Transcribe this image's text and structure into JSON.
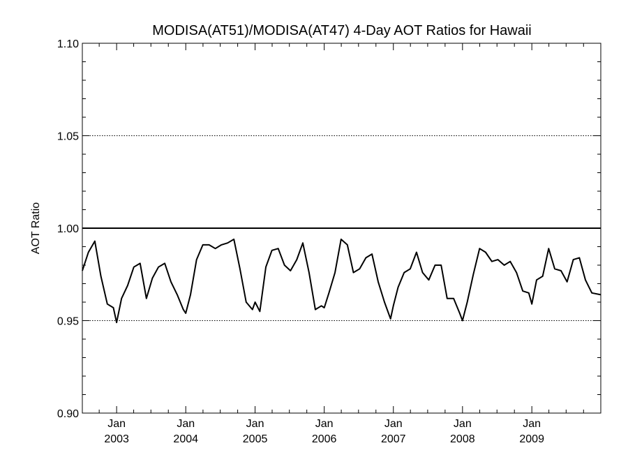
{
  "chart_data": {
    "type": "line",
    "title": "MODISA(AT51)/MODISA(AT47) 4-Day AOT Ratios for Hawaii",
    "xlabel": "",
    "ylabel": "AOT Ratio",
    "ylim": [
      0.9,
      1.1
    ],
    "xlim": [
      "2002-07-04",
      "2009-12-31"
    ],
    "yticks": [
      "0.90",
      "0.95",
      "1.00",
      "1.05",
      "1.10"
    ],
    "xticks": [
      {
        "month": "Jan",
        "year": "2003",
        "date": "2003-01-01"
      },
      {
        "month": "Jan",
        "year": "2004",
        "date": "2004-01-01"
      },
      {
        "month": "Jan",
        "year": "2005",
        "date": "2005-01-01"
      },
      {
        "month": "Jan",
        "year": "2006",
        "date": "2006-01-01"
      },
      {
        "month": "Jan",
        "year": "2007",
        "date": "2007-01-01"
      },
      {
        "month": "Jan",
        "year": "2008",
        "date": "2008-01-01"
      },
      {
        "month": "Jan",
        "year": "2009",
        "date": "2009-01-01"
      }
    ],
    "grid_y": [
      "0.95",
      "1.05"
    ],
    "reference_line": 1.0,
    "series": [
      {
        "x": [
          "2002-07-04",
          "2002-08-05",
          "2002-09-08",
          "2002-10-10",
          "2002-11-13",
          "2002-12-15",
          "2003-01-01",
          "2003-01-27",
          "2003-02-28",
          "2003-04-02",
          "2003-05-05",
          "2003-06-07",
          "2003-07-09",
          "2003-08-10",
          "2003-09-12",
          "2003-10-15",
          "2003-11-17",
          "2003-12-19",
          "2004-01-01",
          "2004-01-26",
          "2004-02-27",
          "2004-03-31",
          "2004-05-03",
          "2004-06-05",
          "2004-07-07",
          "2004-08-09",
          "2004-09-11",
          "2004-10-13",
          "2004-11-15",
          "2004-12-18",
          "2005-01-01",
          "2005-01-26",
          "2005-02-27",
          "2005-03-31",
          "2005-05-03",
          "2005-06-05",
          "2005-07-07",
          "2005-08-09",
          "2005-09-10",
          "2005-10-13",
          "2005-11-15",
          "2005-12-17",
          "2006-01-01",
          "2006-01-26",
          "2006-02-27",
          "2006-03-31",
          "2006-05-03",
          "2006-06-04",
          "2006-07-07",
          "2006-08-09",
          "2006-09-10",
          "2006-10-13",
          "2006-11-15",
          "2006-12-17",
          "2007-01-01",
          "2007-01-26",
          "2007-02-27",
          "2007-03-31",
          "2007-05-03",
          "2007-06-04",
          "2007-07-07",
          "2007-08-09",
          "2007-09-10",
          "2007-10-12",
          "2007-11-15",
          "2007-12-17",
          "2008-01-01",
          "2008-01-26",
          "2008-02-27",
          "2008-03-31",
          "2008-05-02",
          "2008-06-04",
          "2008-07-06",
          "2008-08-08",
          "2008-09-09",
          "2008-10-12",
          "2008-11-14",
          "2008-12-16",
          "2009-01-01",
          "2009-01-26",
          "2009-02-27",
          "2009-03-31",
          "2009-05-02",
          "2009-06-04",
          "2009-07-06",
          "2009-08-08",
          "2009-09-09",
          "2009-10-11",
          "2009-11-14",
          "2009-12-31"
        ],
        "values": [
          0.977,
          0.987,
          0.993,
          0.974,
          0.959,
          0.957,
          0.949,
          0.962,
          0.969,
          0.979,
          0.981,
          0.962,
          0.973,
          0.979,
          0.981,
          0.971,
          0.964,
          0.956,
          0.954,
          0.964,
          0.983,
          0.991,
          0.991,
          0.989,
          0.991,
          0.992,
          0.994,
          0.978,
          0.96,
          0.956,
          0.96,
          0.955,
          0.979,
          0.988,
          0.989,
          0.98,
          0.977,
          0.983,
          0.992,
          0.976,
          0.956,
          0.958,
          0.957,
          0.965,
          0.976,
          0.994,
          0.991,
          0.976,
          0.978,
          0.984,
          0.986,
          0.971,
          0.96,
          0.951,
          0.958,
          0.968,
          0.976,
          0.978,
          0.987,
          0.976,
          0.972,
          0.98,
          0.98,
          0.962,
          0.962,
          0.954,
          0.95,
          0.96,
          0.975,
          0.989,
          0.987,
          0.982,
          0.983,
          0.98,
          0.982,
          0.976,
          0.966,
          0.965,
          0.959,
          0.972,
          0.974,
          0.989,
          0.978,
          0.977,
          0.971,
          0.983,
          0.984,
          0.972,
          0.965,
          0.964
        ]
      }
    ]
  }
}
